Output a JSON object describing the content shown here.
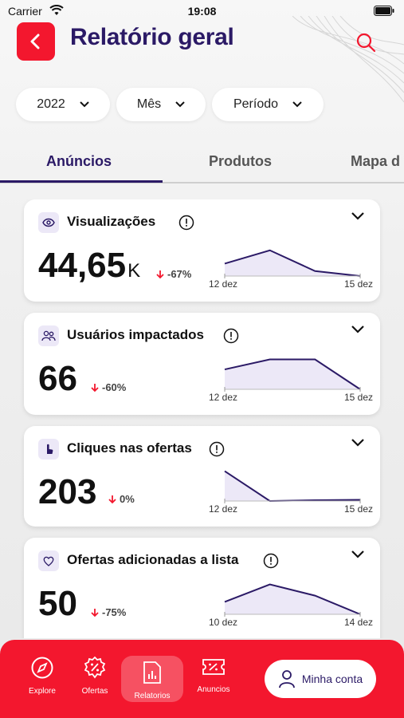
{
  "status_bar": {
    "carrier": "Carrier",
    "time": "19:08"
  },
  "header": {
    "title": "Relatório geral"
  },
  "filters": {
    "year": "2022",
    "month": "Mês",
    "period": "Período"
  },
  "tabs": [
    {
      "label": "Anúncios",
      "active": true
    },
    {
      "label": "Produtos",
      "active": false
    },
    {
      "label": "Mapa d",
      "active": false
    }
  ],
  "metrics": [
    {
      "title": "Visualizações",
      "value": "44,65",
      "unit": "K",
      "change": "-67%",
      "start_label": "12 dez",
      "end_label": "15 dez",
      "series": [
        0.3,
        0.62,
        0.12,
        0.0
      ]
    },
    {
      "title": "Usuários impactados",
      "value": "66",
      "unit": "",
      "change": "-60%",
      "start_label": "12 dez",
      "end_label": "15 dez",
      "series": [
        0.48,
        0.72,
        0.72,
        0.0
      ]
    },
    {
      "title": "Cliques nas ofertas",
      "value": "203",
      "unit": "",
      "change": "0%",
      "start_label": "12 dez",
      "end_label": "15 dez",
      "series": [
        0.72,
        0.0,
        0.02,
        0.03
      ]
    },
    {
      "title": "Ofertas adicionadas a lista",
      "value": "50",
      "unit": "",
      "change": "-75%",
      "start_label": "10 dez",
      "end_label": "14 dez",
      "series": [
        0.3,
        0.72,
        0.45,
        0.0
      ]
    }
  ],
  "bottom_nav": {
    "items": [
      {
        "label": "Explore",
        "icon": "compass-icon"
      },
      {
        "label": "Ofertas",
        "icon": "discount-icon"
      },
      {
        "label": "Relatorios",
        "icon": "report-icon",
        "active": true
      },
      {
        "label": "Anuncios",
        "icon": "ticket-icon"
      }
    ],
    "account_label": "Minha conta"
  },
  "colors": {
    "accent_red": "#f3172e",
    "brand_purple": "#2b1a66",
    "chart_fill": "#ece8f7"
  }
}
